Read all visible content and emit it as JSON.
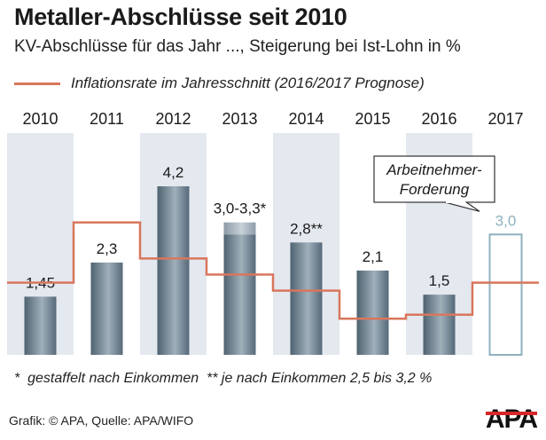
{
  "header": {
    "title": "Metaller-Abschlüsse seit 2010",
    "subtitle": "KV-Abschlüsse für das Jahr ..., Steigerung bei Ist-Lohn in %",
    "legend_label": "Inflationsrate im Jahresschnitt (2016/2017 Prognose)"
  },
  "callout": {
    "line1": "Arbeitnehmer-",
    "line2": "Forderung"
  },
  "footnote": "*  gestaffelt nach Einkommen  ** je nach Einkommen 2,5 bis 3,2 %",
  "source": "Grafik: © APA, Quelle: APA/WIFO",
  "logo_text": "APA",
  "colors": {
    "band": "#e4e8ef",
    "bar": "#6f8392",
    "inflation_line": "#d9765c",
    "demand_outline": "#8fb1bf",
    "demand_label": "#8fb1bf",
    "logo_red": "#d62828"
  },
  "chart_data": {
    "type": "bar",
    "categories": [
      "2010",
      "2011",
      "2012",
      "2013",
      "2014",
      "2015",
      "2016",
      "2017"
    ],
    "series": [
      {
        "name": "KV-Abschlüsse",
        "values": [
          1.45,
          2.3,
          4.2,
          3.0,
          2.8,
          2.1,
          1.5,
          3.0
        ],
        "labels": [
          "1,45",
          "2,3",
          "4,2",
          "3,0-3,3*",
          "2,8**",
          "2,1",
          "1,5",
          "3,0"
        ],
        "range_high": [
          null,
          null,
          null,
          3.3,
          null,
          null,
          null,
          null
        ],
        "style": [
          "solid",
          "solid",
          "solid",
          "solid",
          "solid",
          "solid",
          "solid",
          "outline"
        ]
      },
      {
        "name": "Inflationsrate im Jahresschnitt (2016/2017 Prognose)",
        "type": "step-line",
        "values": [
          1.8,
          3.3,
          2.4,
          2.0,
          1.6,
          0.9,
          1.0,
          1.8
        ]
      }
    ],
    "ylim": [
      0,
      4.8
    ],
    "grid": false,
    "legend": "top"
  }
}
